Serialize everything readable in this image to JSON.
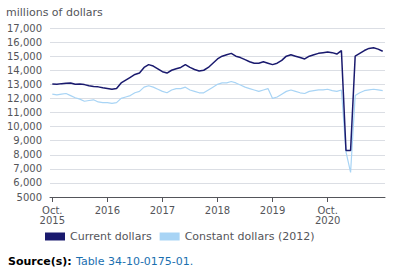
{
  "chart_data": {
    "type": "line",
    "y_label": "millions of dollars",
    "annotations": [
      "Source(s):",
      "Table 34-10-0175-01."
    ],
    "categories": [
      "Oct.\n2015",
      null,
      null,
      null,
      null,
      null,
      null,
      null,
      null,
      null,
      null,
      null,
      "2016",
      null,
      null,
      null,
      null,
      null,
      null,
      null,
      null,
      null,
      null,
      null,
      "2017",
      null,
      null,
      null,
      null,
      null,
      null,
      null,
      null,
      null,
      null,
      null,
      "2018",
      null,
      null,
      null,
      null,
      null,
      null,
      null,
      null,
      null,
      null,
      null,
      "2019",
      null,
      null,
      null,
      null,
      null,
      null,
      null,
      null,
      null,
      null,
      null,
      "Oct.\n2020",
      null,
      null,
      null,
      null,
      null,
      null,
      null,
      null,
      null,
      null,
      null,
      null
    ],
    "series": [
      {
        "name": "Current dollars",
        "color": "#1a1a6e",
        "values": [
          13020,
          13000,
          13050,
          13080,
          13100,
          13000,
          13020,
          12980,
          12900,
          12850,
          12820,
          12750,
          12700,
          12650,
          12700,
          13100,
          13300,
          13500,
          13700,
          13800,
          14200,
          14400,
          14300,
          14100,
          13900,
          13800,
          14000,
          14100,
          14200,
          14400,
          14200,
          14050,
          13950,
          14000,
          14200,
          14500,
          14800,
          15000,
          15100,
          15200,
          15000,
          14900,
          14750,
          14600,
          14500,
          14500,
          14600,
          14500,
          14400,
          14500,
          14700,
          15000,
          15100,
          15000,
          14900,
          14800,
          15000,
          15100,
          15200,
          15250,
          15300,
          15250,
          15150,
          15400,
          8300,
          8300,
          15000,
          15200,
          15400,
          15550,
          15600,
          15500,
          15350
        ]
      },
      {
        "name": "Constant dollars (2012)",
        "color": "#a8d4f5",
        "values": [
          12300,
          12250,
          12300,
          12350,
          12200,
          12050,
          11950,
          11800,
          11850,
          11900,
          11750,
          11700,
          11700,
          11650,
          11700,
          12000,
          12100,
          12200,
          12400,
          12500,
          12800,
          12900,
          12800,
          12650,
          12500,
          12400,
          12600,
          12700,
          12700,
          12800,
          12600,
          12500,
          12400,
          12400,
          12600,
          12800,
          13000,
          13100,
          13100,
          13200,
          13100,
          12950,
          12800,
          12700,
          12600,
          12500,
          12600,
          12700,
          12000,
          12100,
          12300,
          12500,
          12600,
          12500,
          12400,
          12350,
          12500,
          12550,
          12600,
          12600,
          12650,
          12550,
          12500,
          12600,
          8200,
          6750,
          12200,
          12400,
          12550,
          12600,
          12650,
          12600,
          12550
        ]
      }
    ],
    "ylim": [
      5000,
      17000
    ],
    "yticks": [
      5000,
      {
        "value": 6000,
        "label": "6,000"
      },
      {
        "value": 7000,
        "label": "7,000"
      },
      {
        "value": 8000,
        "label": "8,000"
      },
      {
        "value": 9000,
        "label": "9,000"
      },
      {
        "value": 10000,
        "label": "10,000"
      },
      {
        "value": 11000,
        "label": "11,000"
      },
      {
        "value": 12000,
        "label": "12,000"
      },
      {
        "value": 13000,
        "label": "13,000"
      },
      {
        "value": 14000,
        "label": "14,000"
      },
      {
        "value": 15000,
        "label": "15,000"
      },
      {
        "value": 16000,
        "label": "16,000"
      },
      {
        "value": 17000,
        "label": "17,000"
      }
    ],
    "grid": true,
    "legend": "lower left"
  }
}
